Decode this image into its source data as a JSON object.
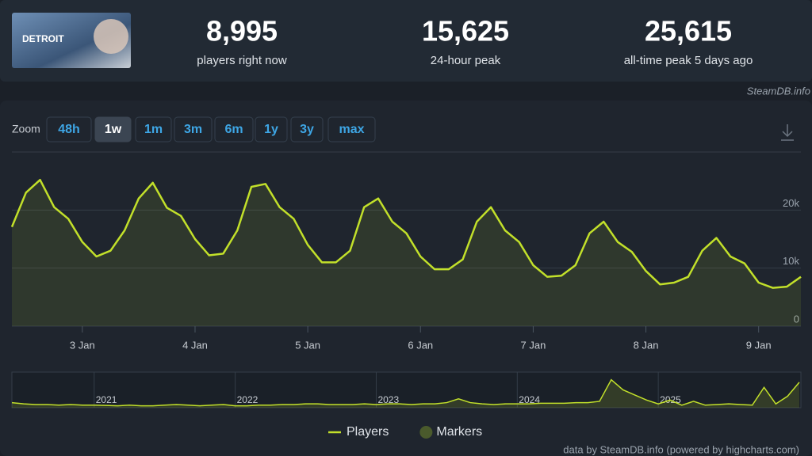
{
  "header": {
    "game_logo": "DETROIT",
    "stats": [
      {
        "value": "8,995",
        "label": "players right now"
      },
      {
        "value": "15,625",
        "label": "24-hour peak"
      },
      {
        "value": "25,615",
        "label": "all-time peak 5 days ago"
      }
    ]
  },
  "source": "SteamDB.info",
  "zoom": {
    "label": "Zoom",
    "buttons": [
      "48h",
      "1w",
      "1m",
      "3m",
      "6m",
      "1y",
      "3y",
      "max"
    ],
    "active": 1
  },
  "chart_data": [
    {
      "type": "line",
      "categories": [
        null,
        null,
        null,
        null,
        null,
        "3 Jan",
        null,
        null,
        null,
        null,
        null,
        null,
        null,
        "4 Jan",
        null,
        null,
        null,
        null,
        null,
        null,
        null,
        "5 Jan",
        null,
        null,
        null,
        null,
        null,
        null,
        null,
        "6 Jan",
        null,
        null,
        null,
        null,
        null,
        null,
        null,
        "7 Jan",
        null,
        null,
        null,
        null,
        null,
        null,
        null,
        "8 Jan",
        null,
        null,
        null,
        null,
        null,
        null,
        null,
        "9 Jan",
        null,
        null,
        null
      ],
      "series": [
        {
          "name": "Players",
          "color": "#c2e02a",
          "values": [
            17100,
            23000,
            25200,
            20500,
            18500,
            14500,
            12000,
            13000,
            16500,
            22000,
            24700,
            20400,
            19000,
            15000,
            12200,
            12500,
            16500,
            24000,
            24500,
            20500,
            18500,
            14000,
            11000,
            11000,
            13000,
            20500,
            22000,
            18000,
            16000,
            12000,
            9800,
            9800,
            11500,
            18000,
            20500,
            16500,
            14500,
            10500,
            8500,
            8700,
            10500,
            16000,
            18000,
            14500,
            12800,
            9500,
            7200,
            7500,
            8500,
            13000,
            15200,
            12000,
            10800,
            7500,
            6600,
            6800,
            8500
          ]
        },
        {
          "name": "Markers",
          "color": "#4a5a2c"
        }
      ],
      "ylim": [
        0,
        30000
      ],
      "yticks": [
        0,
        {
          "value": 10000,
          "label": "10k"
        },
        {
          "value": 20000,
          "label": "20k"
        }
      ],
      "grid": true
    },
    {
      "type": "area",
      "color": "#c2e02a",
      "categories": [
        null,
        null,
        null,
        null,
        null,
        null,
        null,
        "2021",
        null,
        null,
        null,
        null,
        null,
        null,
        null,
        null,
        null,
        null,
        null,
        "2022",
        null,
        null,
        null,
        null,
        null,
        null,
        null,
        null,
        null,
        null,
        null,
        "2023",
        null,
        null,
        null,
        null,
        null,
        null,
        null,
        null,
        null,
        null,
        null,
        "2024",
        null,
        null,
        null,
        null,
        null,
        null,
        null,
        null,
        null,
        null,
        null,
        "2025",
        null,
        null,
        null,
        null,
        null,
        null,
        null,
        null,
        null,
        null,
        null,
        null
      ],
      "values": [
        4000,
        3000,
        2500,
        2500,
        2000,
        2500,
        2000,
        2000,
        1800,
        1500,
        2000,
        1500,
        1500,
        2000,
        2500,
        2000,
        1500,
        2000,
        2500,
        1500,
        1500,
        2000,
        2000,
        2500,
        2500,
        3000,
        3000,
        2500,
        2500,
        2500,
        3000,
        2500,
        3000,
        3000,
        2500,
        3000,
        3000,
        4000,
        7000,
        4000,
        3000,
        2500,
        3000,
        3000,
        3000,
        3500,
        3500,
        3500,
        4000,
        4000,
        5000,
        22000,
        14000,
        10000,
        6000,
        3000,
        6000,
        2000,
        5000,
        2000,
        2500,
        3000,
        2500,
        2000,
        16000,
        3000,
        9000,
        20000
      ],
      "ylim": [
        0,
        28000
      ]
    }
  ],
  "credit": "data by SteamDB.info (powered by highcharts.com)"
}
